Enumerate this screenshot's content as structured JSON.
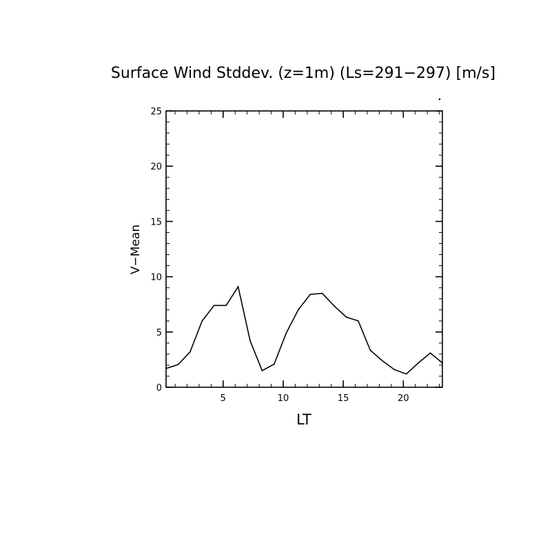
{
  "chart_data": {
    "type": "line",
    "title": "Surface Wind Stddev. (z=1m) (Ls=291−297) [m/s]",
    "xlabel": "LT",
    "ylabel": "V−Mean",
    "xlim": [
      0.25,
      23.25
    ],
    "ylim": [
      0,
      25
    ],
    "xticks": [
      5,
      10,
      15,
      20
    ],
    "xtick_labels": [
      "5",
      "10",
      "15",
      "20"
    ],
    "yticks": [
      0,
      5,
      10,
      15,
      20,
      25
    ],
    "ytick_labels": [
      "0",
      "5",
      "10",
      "15",
      "20",
      "25"
    ],
    "grid": false,
    "series": [
      {
        "name": "V-Mean",
        "color": "#000000",
        "x": [
          0.25,
          1.25,
          2.25,
          3.25,
          4.25,
          5.25,
          6.25,
          7.25,
          8.25,
          9.25,
          10.25,
          11.25,
          12.25,
          13.25,
          14.25,
          15.25,
          16.25,
          17.25,
          18.25,
          19.25,
          20.25,
          21.25,
          22.25,
          23.25
        ],
        "y": [
          1.7,
          2.05,
          3.2,
          6.0,
          7.4,
          7.4,
          9.1,
          4.2,
          1.5,
          2.1,
          4.9,
          7.0,
          8.4,
          8.5,
          7.35,
          6.35,
          6.0,
          3.35,
          2.4,
          1.6,
          1.2,
          2.2,
          3.1,
          2.2
        ]
      }
    ]
  }
}
